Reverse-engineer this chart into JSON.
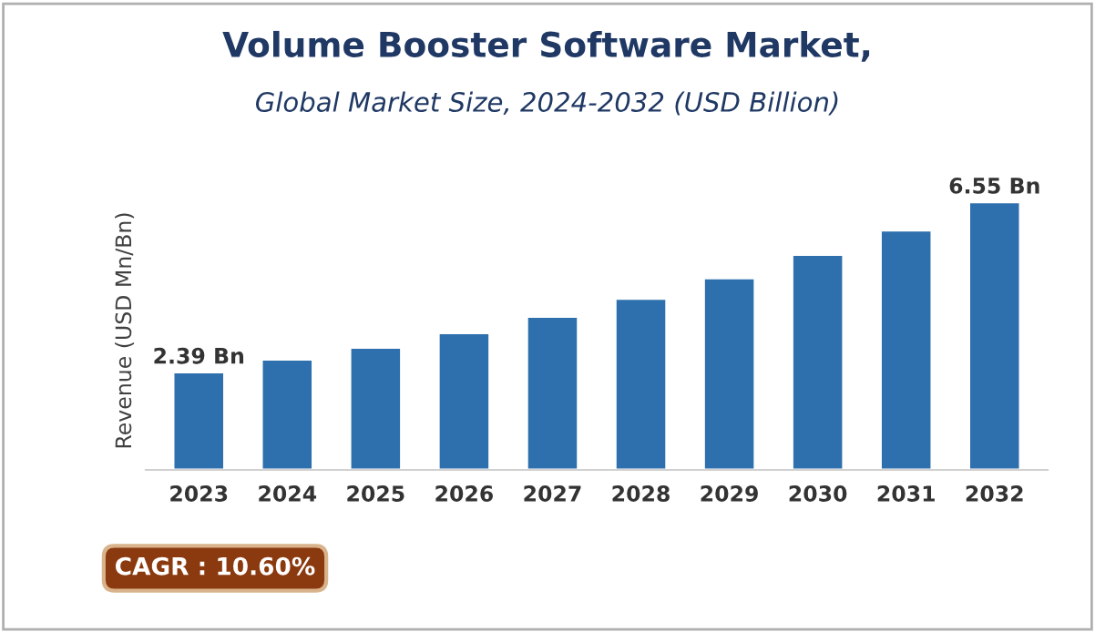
{
  "chart_data": {
    "type": "bar",
    "title": "Volume Booster Software Market,",
    "subtitle": "Global Market Size, 2024-2032 (USD Billion)",
    "ylabel": "Revenue (USD Mn/Bn)",
    "categories": [
      "2023",
      "2024",
      "2025",
      "2026",
      "2027",
      "2028",
      "2029",
      "2030",
      "2031",
      "2032"
    ],
    "values": [
      2.39,
      2.7,
      2.99,
      3.35,
      3.75,
      4.19,
      4.69,
      5.26,
      5.86,
      6.55
    ],
    "value_labels": [
      "2.39 Bn",
      null,
      null,
      null,
      null,
      null,
      null,
      null,
      null,
      "6.55 Bn"
    ],
    "color": "#2e6fad",
    "annotations": [
      "CAGR : 10.60%"
    ],
    "grid": false,
    "legend": false
  }
}
